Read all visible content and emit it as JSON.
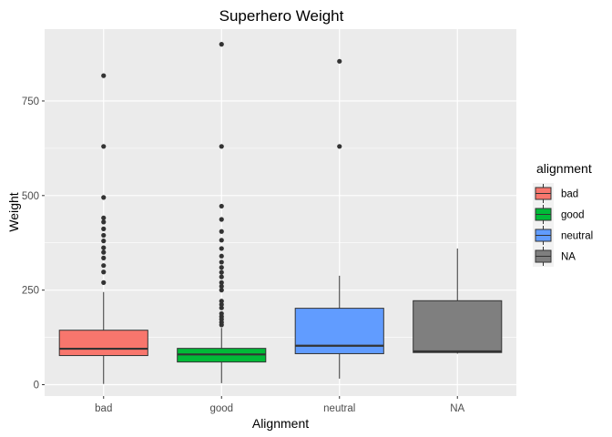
{
  "chart_data": {
    "type": "boxplot",
    "title": "Superhero Weight",
    "xlabel": "Alignment",
    "ylabel": "Weight",
    "ylim": [
      -30,
      940
    ],
    "yticks": [
      0,
      250,
      500,
      750
    ],
    "grid": true,
    "legend": {
      "title": "alignment",
      "placement": "right",
      "entries": [
        {
          "label": "bad",
          "color": "#F8766D"
        },
        {
          "label": "good",
          "color": "#00BA38"
        },
        {
          "label": "neutral",
          "color": "#619CFF"
        },
        {
          "label": "NA",
          "color": "#7F7F7F"
        }
      ]
    },
    "categories": [
      "bad",
      "good",
      "neutral",
      "NA"
    ],
    "boxes": [
      {
        "category": "bad",
        "color": "#F8766D",
        "whisker_low": 2,
        "q1": 77,
        "median": 95,
        "q3": 144,
        "whisker_high": 245,
        "outliers": [
          270,
          298,
          315,
          335,
          350,
          362,
          380,
          395,
          412,
          430,
          441,
          495,
          630,
          817
        ]
      },
      {
        "category": "good",
        "color": "#00BA38",
        "whisker_low": 4,
        "q1": 60,
        "median": 80,
        "q3": 96,
        "whisker_high": 150,
        "outliers": [
          158,
          165,
          173,
          180,
          188,
          203,
          212,
          221,
          250,
          260,
          270,
          285,
          297,
          310,
          324,
          340,
          360,
          382,
          405,
          437,
          472,
          630,
          900
        ]
      },
      {
        "category": "neutral",
        "color": "#619CFF",
        "whisker_low": 16,
        "q1": 82,
        "median": 103,
        "q3": 202,
        "whisker_high": 288,
        "outliers": [
          630,
          855
        ]
      },
      {
        "category": "NA",
        "color": "#7F7F7F",
        "whisker_low": 82,
        "q1": 85,
        "median": 88,
        "q3": 222,
        "whisker_high": 360,
        "outliers": []
      }
    ]
  }
}
